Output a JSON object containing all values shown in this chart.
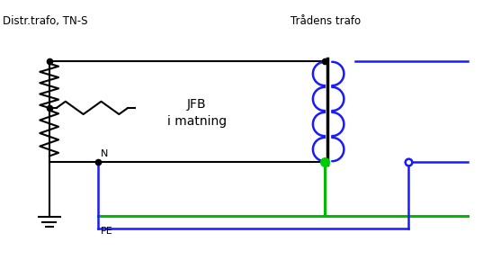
{
  "title_left": "Distr.trafo, TN-S",
  "title_right": "Trådens trafo",
  "label_N": "N",
  "label_PE": "PE",
  "label_JFB": "JFB\ni matning",
  "bg_color": "#ffffff",
  "black": "#000000",
  "blue": "#1a1aff",
  "green": "#00bb00",
  "green_dot": "#00cc00",
  "lw_main": 1.5,
  "lw_blue": 1.8,
  "lw_green": 2.2,
  "lw_core": 2.5
}
